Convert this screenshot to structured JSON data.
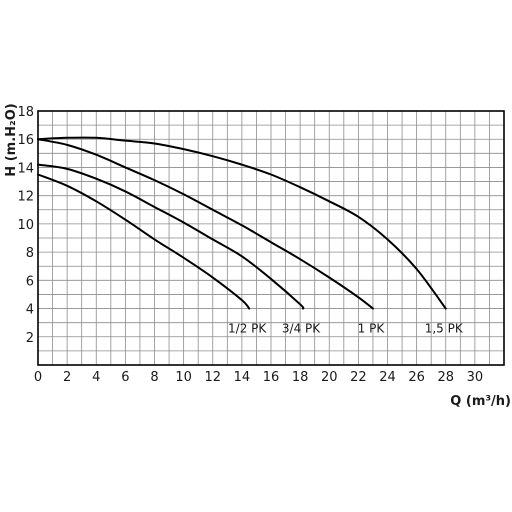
{
  "chart_data": {
    "type": "line",
    "title": "",
    "xlabel": "Q (m³/h)",
    "ylabel": "H (m.H₂O)",
    "xlim": [
      0,
      32
    ],
    "ylim": [
      0,
      18
    ],
    "x_ticks": [
      0,
      2,
      4,
      6,
      8,
      10,
      12,
      14,
      16,
      18,
      20,
      22,
      24,
      26,
      28,
      30
    ],
    "y_ticks": [
      2,
      4,
      6,
      8,
      10,
      12,
      14,
      16,
      18
    ],
    "x_grid_step": 1,
    "y_grid_step": 1,
    "grid": true,
    "legend": "none",
    "series": [
      {
        "name": "1/2 PK",
        "x": [
          0,
          2,
          4,
          6,
          8,
          10,
          12,
          14,
          14.5
        ],
        "y": [
          13.5,
          12.7,
          11.6,
          10.3,
          8.9,
          7.6,
          6.2,
          4.6,
          4.0
        ]
      },
      {
        "name": "3/4 PK",
        "x": [
          0,
          2,
          4,
          6,
          8,
          10,
          12,
          14,
          16,
          18,
          18.2
        ],
        "y": [
          14.2,
          13.9,
          13.2,
          12.3,
          11.2,
          10.1,
          8.9,
          7.7,
          6.1,
          4.3,
          4.0
        ]
      },
      {
        "name": "1 PK",
        "x": [
          0,
          2,
          4,
          6,
          8,
          10,
          12,
          14,
          16,
          18,
          20,
          22,
          23
        ],
        "y": [
          16.0,
          15.6,
          14.9,
          14.0,
          13.1,
          12.1,
          11.0,
          9.9,
          8.7,
          7.5,
          6.2,
          4.8,
          4.0
        ]
      },
      {
        "name": "1,5 PK",
        "x": [
          0,
          2,
          4,
          6,
          8,
          10,
          12,
          14,
          16,
          18,
          20,
          22,
          24,
          26,
          28
        ],
        "y": [
          16.0,
          16.1,
          16.1,
          15.9,
          15.7,
          15.3,
          14.8,
          14.2,
          13.5,
          12.6,
          11.6,
          10.5,
          8.9,
          6.8,
          4.0
        ]
      }
    ]
  }
}
